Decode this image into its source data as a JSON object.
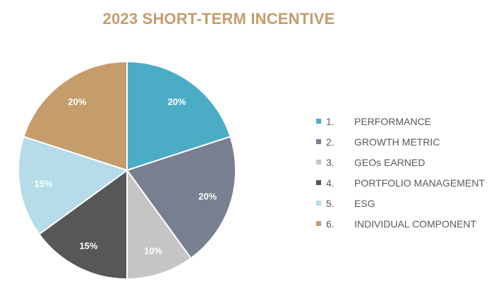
{
  "title": "2023 SHORT-TERM INCENTIVE",
  "title_color": "#c49d6b",
  "chart_data": {
    "type": "pie",
    "title": "2023 SHORT-TERM INCENTIVE",
    "slices": [
      {
        "number": "1.",
        "label": "PERFORMANCE",
        "value": 20,
        "display": "20%",
        "color": "#4badc5"
      },
      {
        "number": "2.",
        "label": "GROWTH METRIC",
        "value": 20,
        "display": "20%",
        "color": "#777f90"
      },
      {
        "number": "3.",
        "label": "GEOs EARNED",
        "value": 10,
        "display": "10%",
        "color": "#c5c5c5"
      },
      {
        "number": "4.",
        "label": "PORTFOLIO MANAGEMENT",
        "value": 15,
        "display": "15%",
        "color": "#575757"
      },
      {
        "number": "5.",
        "label": "ESG",
        "value": 15,
        "display": "15%",
        "color": "#b5dce8"
      },
      {
        "number": "6.",
        "label": "INDIVIDUAL COMPONENT",
        "value": 20,
        "display": "20%",
        "color": "#c49d6b"
      }
    ],
    "legend_position": "right"
  }
}
